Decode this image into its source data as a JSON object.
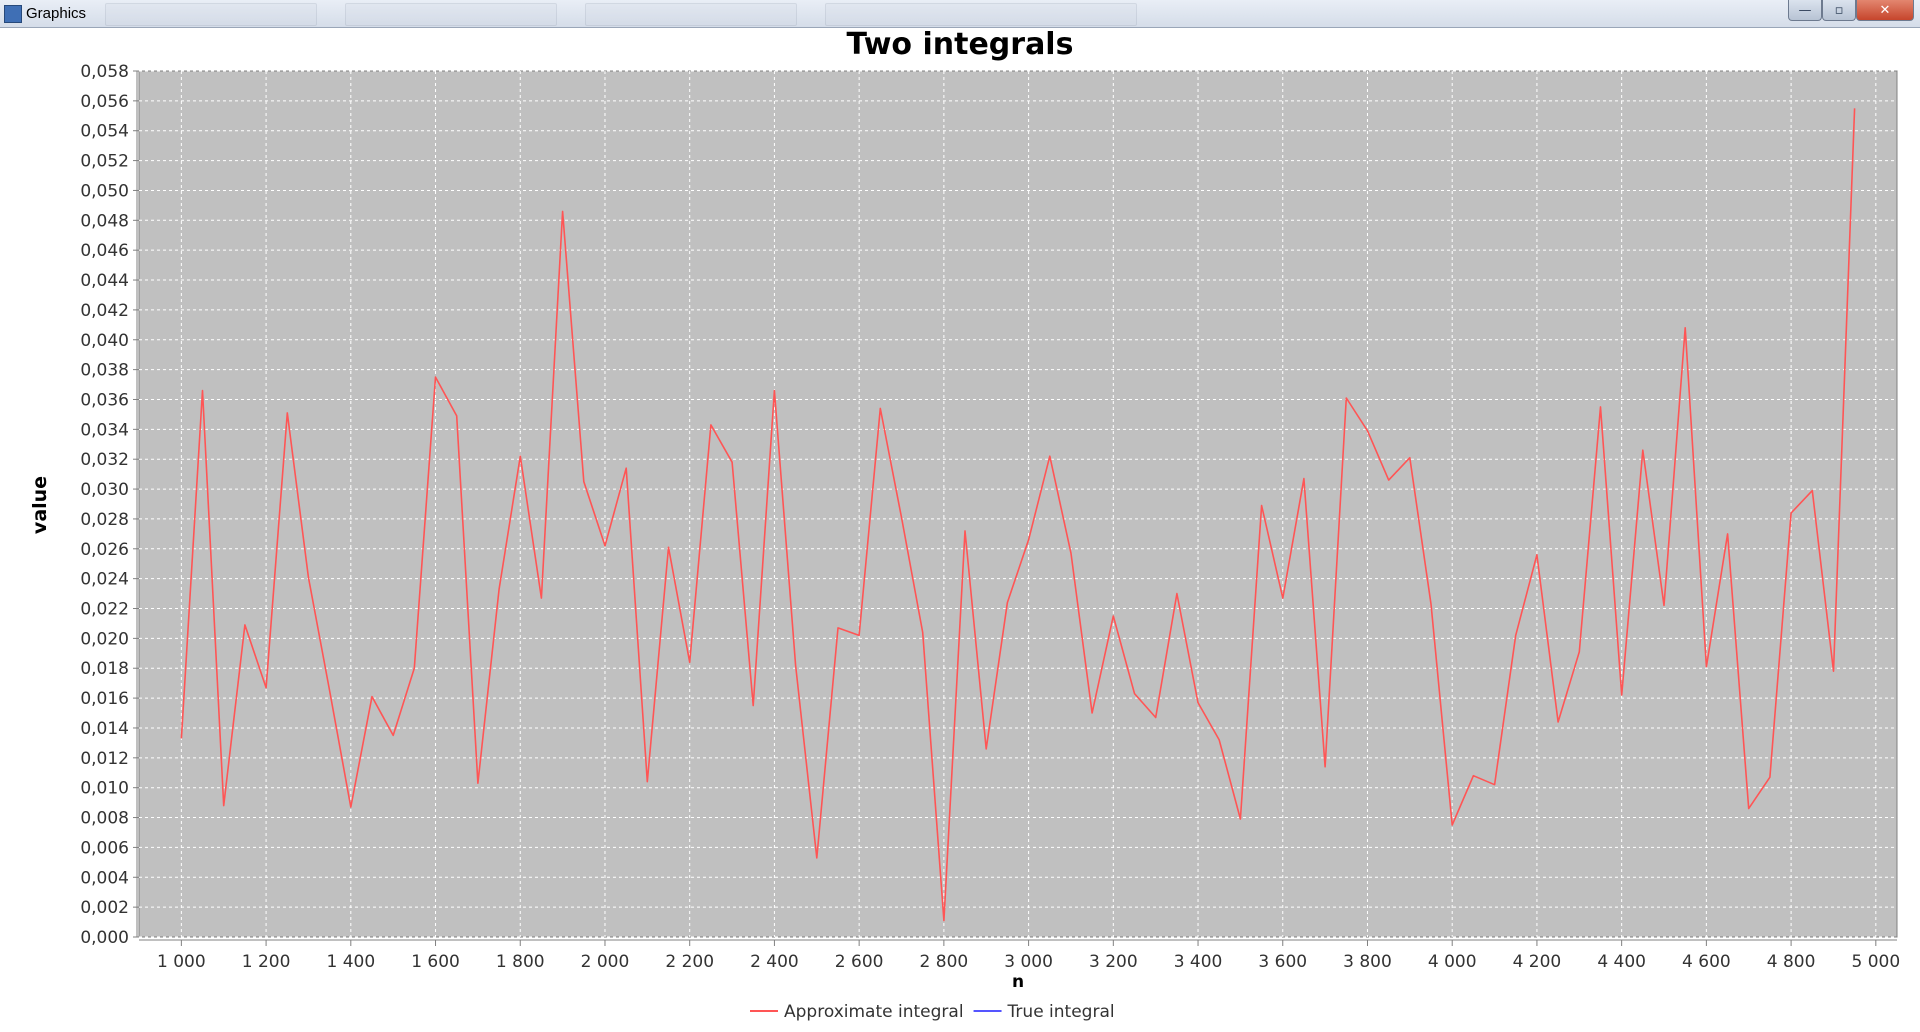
{
  "window": {
    "title": "Graphics"
  },
  "icons": {
    "app": "java-app-icon",
    "minimize": "minimize-icon",
    "maximize": "maximize-icon",
    "close": "close-icon"
  },
  "colors": {
    "plot_background": "#c0c0c0",
    "grid": "#ffffff",
    "approximate": "#ff5555",
    "true": "#5555ff"
  },
  "chart_data": {
    "type": "line",
    "title": "Two integrals",
    "xlabel": "n",
    "ylabel": "value",
    "xlim": [
      900,
      5050
    ],
    "ylim": [
      0,
      0.058
    ],
    "x_ticks": [
      1000,
      1200,
      1400,
      1600,
      1800,
      2000,
      2200,
      2400,
      2600,
      2800,
      3000,
      3200,
      3400,
      3600,
      3800,
      4000,
      4200,
      4400,
      4600,
      4800,
      5000
    ],
    "x_tick_labels": [
      "1 000",
      "1 200",
      "1 400",
      "1 600",
      "1 800",
      "2 000",
      "2 200",
      "2 400",
      "2 600",
      "2 800",
      "3 000",
      "3 200",
      "3 400",
      "3 600",
      "3 800",
      "4 000",
      "4 200",
      "4 400",
      "4 600",
      "4 800",
      "5 000"
    ],
    "y_ticks": [
      0,
      0.002,
      0.004,
      0.006,
      0.008,
      0.01,
      0.012,
      0.014,
      0.016,
      0.018,
      0.02,
      0.022,
      0.024,
      0.026,
      0.028,
      0.03,
      0.032,
      0.034,
      0.036,
      0.038,
      0.04,
      0.042,
      0.044,
      0.046,
      0.048,
      0.05,
      0.052,
      0.054,
      0.056,
      0.058
    ],
    "y_tick_labels": [
      "0,000",
      "0,002",
      "0,004",
      "0,006",
      "0,008",
      "0,010",
      "0,012",
      "0,014",
      "0,016",
      "0,018",
      "0,020",
      "0,022",
      "0,024",
      "0,026",
      "0,028",
      "0,030",
      "0,032",
      "0,034",
      "0,036",
      "0,038",
      "0,040",
      "0,042",
      "0,044",
      "0,046",
      "0,048",
      "0,050",
      "0,052",
      "0,054",
      "0,056",
      "0,058"
    ],
    "grid": true,
    "legend": "bottom-center",
    "series": [
      {
        "name": "Approximate integral",
        "color": "#ff5555",
        "x": [
          1000,
          1050,
          1100,
          1150,
          1200,
          1250,
          1300,
          1350,
          1400,
          1450,
          1500,
          1550,
          1600,
          1650,
          1700,
          1750,
          1800,
          1850,
          1900,
          1950,
          2000,
          2050,
          2100,
          2150,
          2200,
          2250,
          2300,
          2350,
          2400,
          2450,
          2500,
          2550,
          2600,
          2650,
          2700,
          2750,
          2800,
          2850,
          2900,
          2950,
          3000,
          3050,
          3100,
          3150,
          3200,
          3250,
          3300,
          3350,
          3400,
          3450,
          3500,
          3550,
          3600,
          3650,
          3700,
          3750,
          3800,
          3850,
          3900,
          3950,
          4000,
          4050,
          4100,
          4150,
          4200,
          4250,
          4300,
          4350,
          4400,
          4450,
          4500,
          4550,
          4600,
          4650,
          4700,
          4750,
          4800,
          4850,
          4900,
          4950
        ],
        "values": [
          0.0133,
          0.0366,
          0.0088,
          0.0209,
          0.0167,
          0.0351,
          0.0241,
          0.0165,
          0.0087,
          0.0161,
          0.0135,
          0.018,
          0.0375,
          0.0349,
          0.0103,
          0.0233,
          0.0322,
          0.0227,
          0.0486,
          0.0305,
          0.0262,
          0.0314,
          0.0104,
          0.0261,
          0.0184,
          0.0343,
          0.0318,
          0.0155,
          0.0366,
          0.0182,
          0.0053,
          0.0207,
          0.0202,
          0.0354,
          0.0281,
          0.0204,
          0.0011,
          0.0272,
          0.0126,
          0.0224,
          0.0266,
          0.0322,
          0.0257,
          0.015,
          0.0215,
          0.0163,
          0.0147,
          0.023,
          0.0157,
          0.0132,
          0.0079,
          0.0289,
          0.0227,
          0.0307,
          0.0114,
          0.0361,
          0.0339,
          0.0306,
          0.0321,
          0.0223,
          0.0075,
          0.0108,
          0.0102,
          0.0202,
          0.0256,
          0.0144,
          0.0191,
          0.0355,
          0.0162,
          0.0326,
          0.0222,
          0.0408,
          0.0181,
          0.027,
          0.0086,
          0.0107,
          0.0284,
          0.0299,
          0.0178,
          0.0555
        ]
      },
      {
        "name": "True integral",
        "color": "#5555ff",
        "x": [],
        "values": []
      }
    ]
  }
}
